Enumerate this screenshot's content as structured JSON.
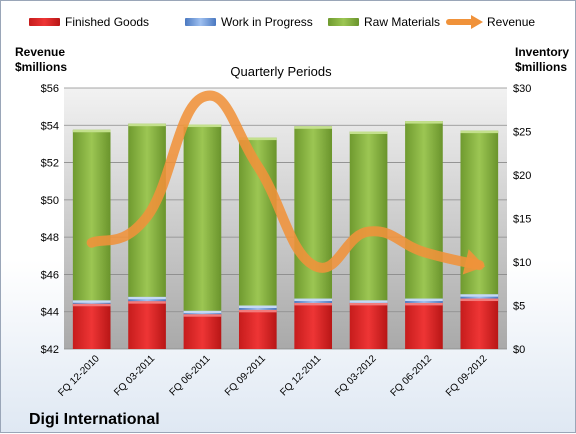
{
  "chart_data": {
    "type": "bar",
    "stacked": true,
    "title": "Quarterly Periods",
    "company": "Digi International",
    "categories": [
      "FQ 12-2010",
      "FQ 03-2011",
      "FQ 06-2011",
      "FQ 09-2011",
      "FQ 12-2011",
      "FQ 03-2012",
      "FQ 06-2012",
      "FQ 09-2012"
    ],
    "left_axis": {
      "label_line1": "Revenue",
      "label_line2": "$millions",
      "range": [
        42,
        56
      ],
      "ticks": [
        "$42",
        "$44",
        "$46",
        "$48",
        "$50",
        "$52",
        "$54",
        "$56"
      ]
    },
    "right_axis": {
      "label_line1": "Inventory",
      "label_line2": "$millions",
      "range": [
        0,
        30
      ],
      "ticks": [
        "$0",
        "$5",
        "$10",
        "$15",
        "$20",
        "$25",
        "$30"
      ]
    },
    "series": [
      {
        "name": "Finished Goods",
        "axis": "right",
        "color": "#e32a2a",
        "values": [
          5.2,
          5.5,
          4.0,
          4.5,
          5.3,
          5.3,
          5.3,
          5.8
        ]
      },
      {
        "name": "Work in Progress",
        "axis": "right",
        "color": "#5a8cd8",
        "values": [
          0.4,
          0.5,
          0.4,
          0.5,
          0.5,
          0.3,
          0.5,
          0.5
        ]
      },
      {
        "name": "Raw Materials",
        "axis": "right",
        "color": "#8fbc45",
        "values": [
          19.6,
          19.9,
          21.4,
          19.3,
          19.8,
          19.4,
          20.4,
          18.8
        ]
      },
      {
        "name": "Revenue",
        "axis": "left",
        "color": "#f0923a",
        "type": "line",
        "values": [
          47.7,
          49.1,
          55.5,
          51.8,
          46.5,
          48.3,
          47.2,
          46.5
        ]
      }
    ],
    "grid": true,
    "legend_position": "top"
  }
}
